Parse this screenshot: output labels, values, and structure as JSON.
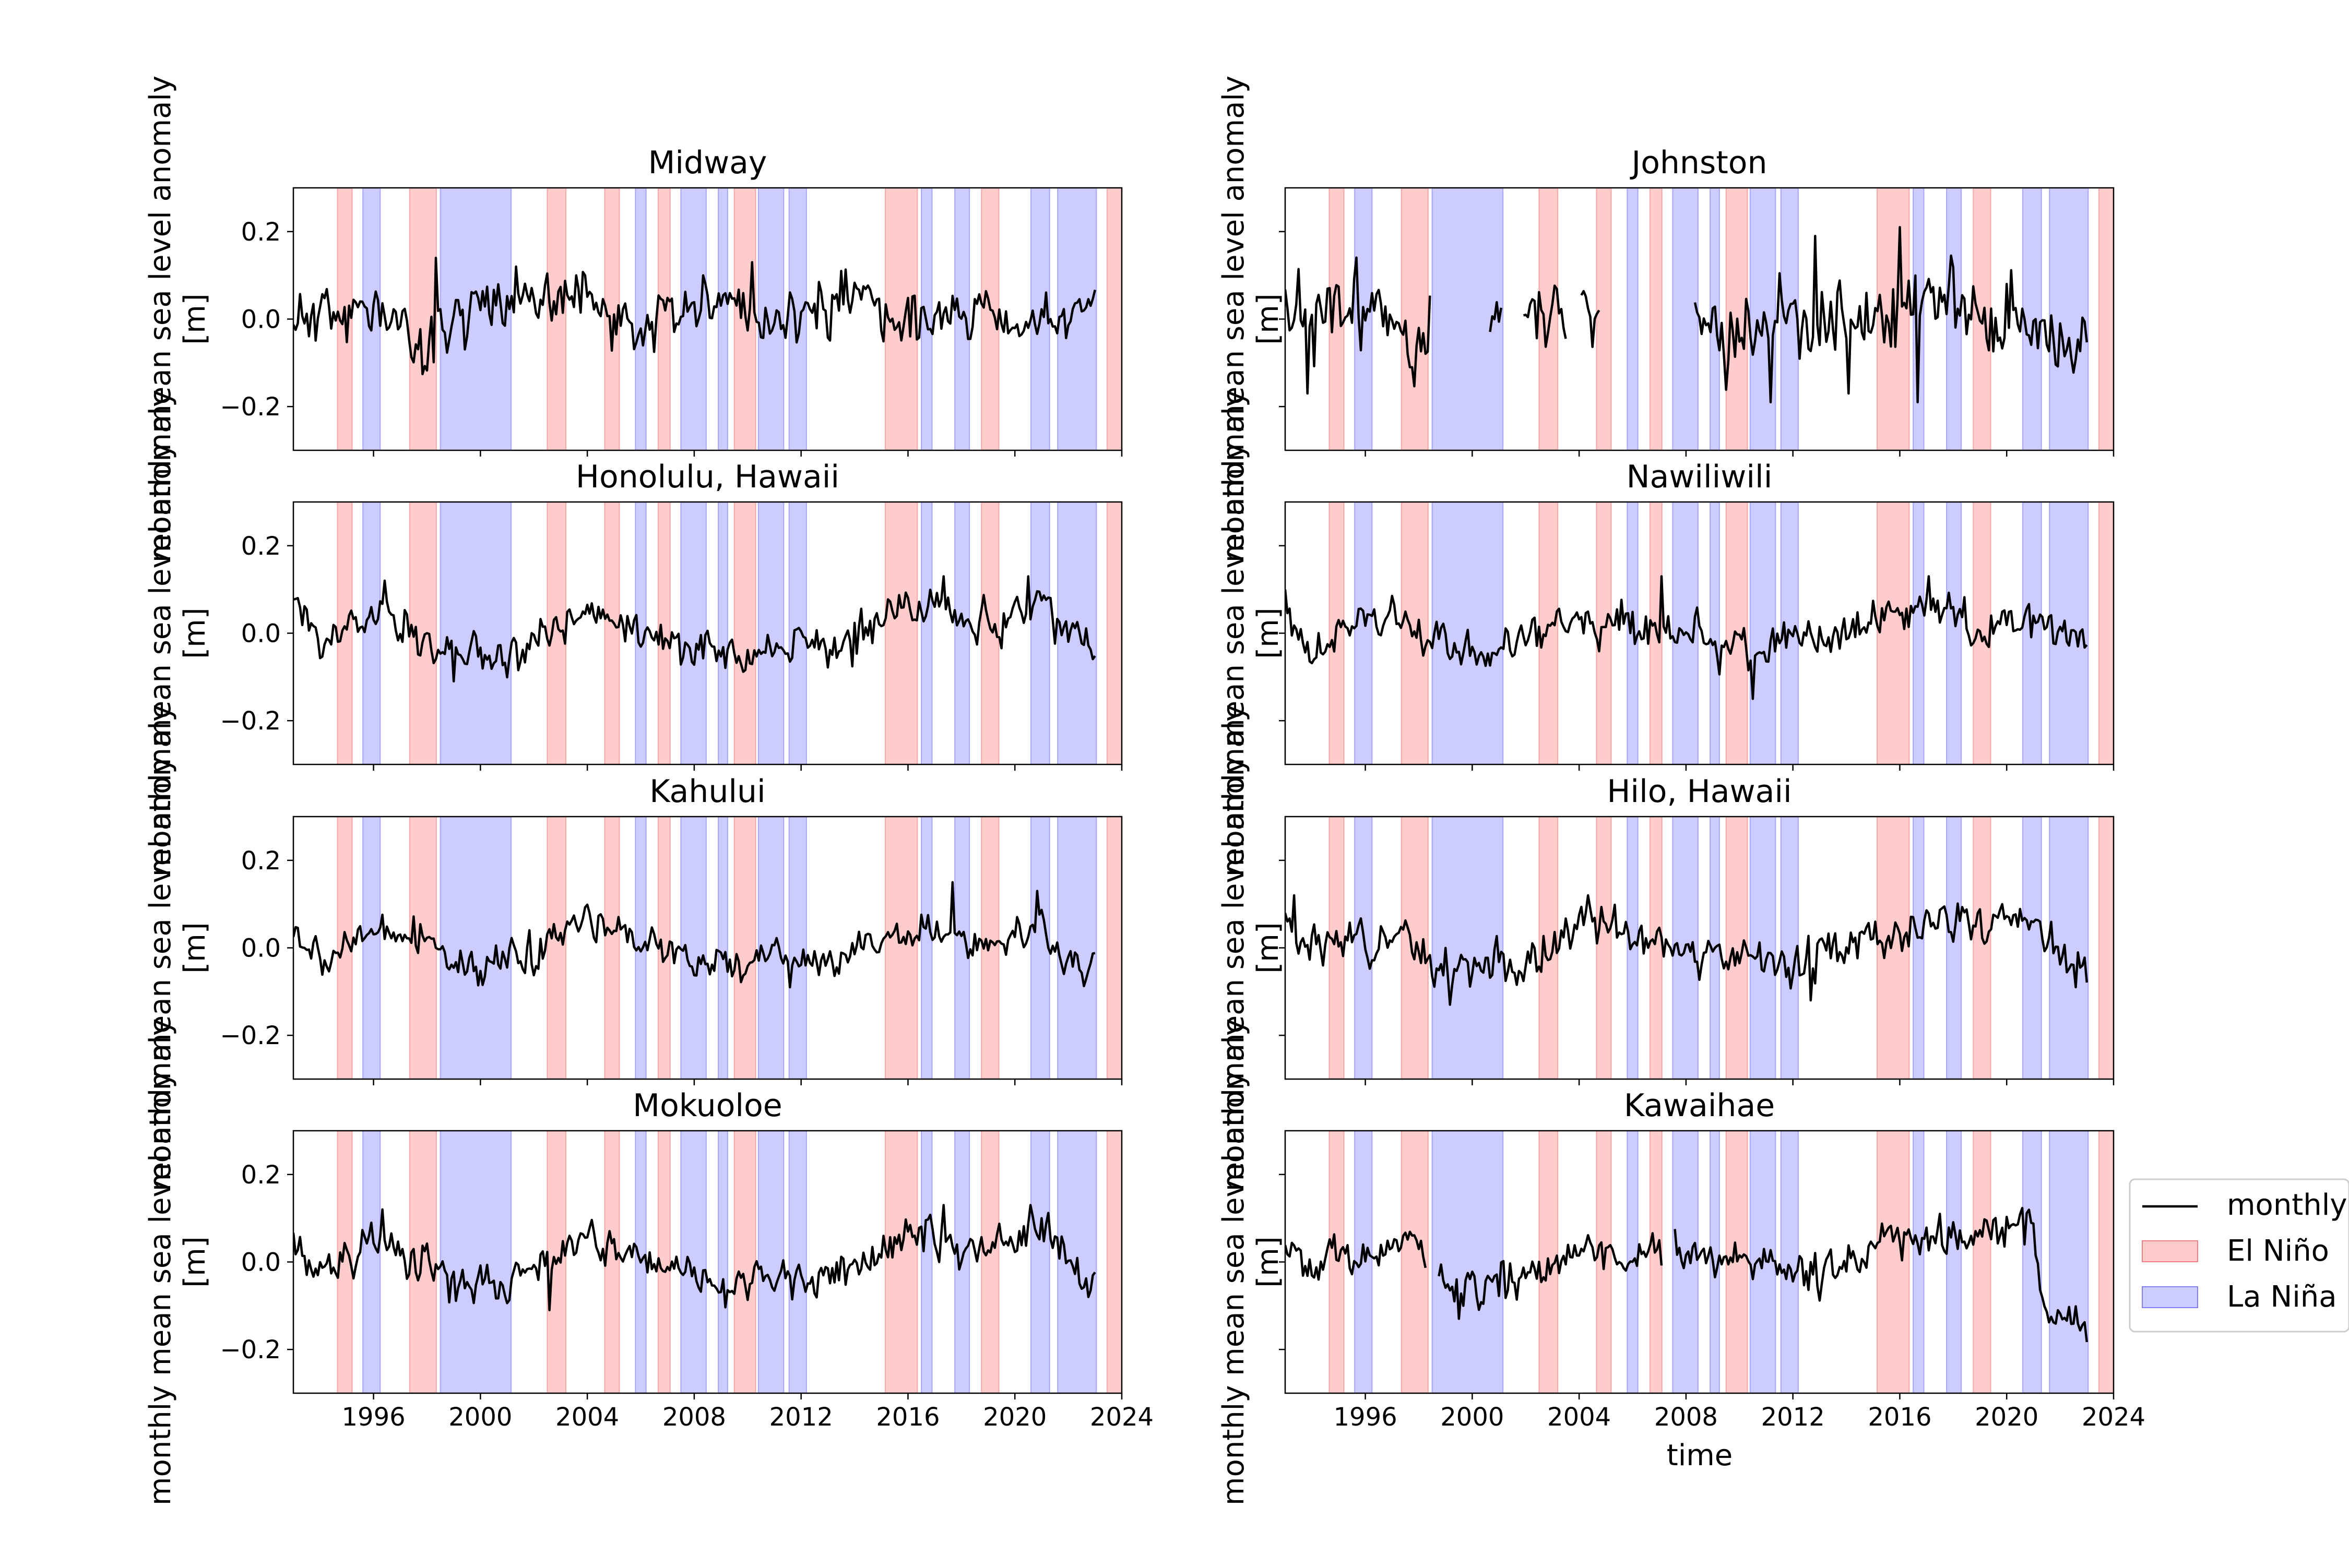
{
  "figure": {
    "legend": {
      "position": "right",
      "entries": [
        {
          "label": "monthly",
          "kind": "line",
          "color": "#000000"
        },
        {
          "label": "El Niño",
          "kind": "patch",
          "fill": "#ffcccc",
          "stroke": "#f28080"
        },
        {
          "label": "La Niña",
          "kind": "patch",
          "fill": "#ccccff",
          "stroke": "#8080f2"
        }
      ]
    }
  },
  "chart_data": {
    "type": "line",
    "layout": "4 rows x 2 columns of subplots, shared x and y axes",
    "xlabel": "time",
    "ylabel": [
      "monthly mean sea level anomaly",
      "[m]"
    ],
    "xlim": [
      1993.0,
      2024.0
    ],
    "ylim": [
      -0.3,
      0.3
    ],
    "x_ticks": [
      1996,
      2000,
      2004,
      2008,
      2012,
      2016,
      2020,
      2024
    ],
    "y_ticks": [
      -0.2,
      0.0,
      0.2
    ],
    "y_tick_labels": [
      "−0.2",
      "0.0",
      "0.2"
    ],
    "grid": false,
    "el_nino_periods": [
      [
        1994.65,
        1995.2
      ],
      [
        1997.35,
        1998.35
      ],
      [
        2002.5,
        2003.2
      ],
      [
        2004.65,
        2005.2
      ],
      [
        2006.65,
        2007.1
      ],
      [
        2009.5,
        2010.3
      ],
      [
        2015.15,
        2016.35
      ],
      [
        2018.75,
        2019.4
      ],
      [
        2023.45,
        2024.0
      ]
    ],
    "la_nina_periods": [
      [
        1995.6,
        1996.25
      ],
      [
        1998.5,
        2001.15
      ],
      [
        2005.8,
        2006.2
      ],
      [
        2007.5,
        2008.45
      ],
      [
        2008.9,
        2009.25
      ],
      [
        2010.4,
        2011.35
      ],
      [
        2011.55,
        2012.2
      ],
      [
        2016.5,
        2016.9
      ],
      [
        2017.75,
        2018.3
      ],
      [
        2020.6,
        2021.3
      ],
      [
        2021.6,
        2023.05
      ]
    ],
    "subplots": [
      {
        "title": "Midway",
        "column": 0,
        "row": 0,
        "series": {
          "name": "monthly",
          "seed": 11,
          "base": [
            [
              1993.0,
              0.0
            ],
            [
              1996.5,
              0.02
            ],
            [
              1998.0,
              -0.08
            ],
            [
              1998.8,
              0.0
            ],
            [
              2001.0,
              0.06
            ],
            [
              2004.0,
              0.03
            ],
            [
              2006.0,
              -0.02
            ],
            [
              2009.0,
              0.04
            ],
            [
              2010.5,
              0.02
            ],
            [
              2012.0,
              0.0
            ],
            [
              2014.0,
              0.05
            ],
            [
              2016.0,
              0.0
            ],
            [
              2018.0,
              0.02
            ],
            [
              2020.0,
              -0.01
            ],
            [
              2022.0,
              0.0
            ],
            [
              2023.0,
              0.02
            ]
          ],
          "noise": 0.05,
          "spikes": [
            [
              1998.3,
              0.14
            ],
            [
              2010.2,
              0.13
            ],
            [
              2013.5,
              0.11
            ],
            [
              2001.3,
              0.12
            ]
          ],
          "start": 1993.0,
          "end": 2023.0,
          "gaps": []
        }
      },
      {
        "title": "Johnston",
        "column": 1,
        "row": 0,
        "series": {
          "name": "monthly",
          "seed": 23,
          "base": [
            [
              1993.0,
              -0.02
            ],
            [
              1996.0,
              0.03
            ],
            [
              1998.5,
              -0.02
            ],
            [
              2003.0,
              0.02
            ],
            [
              2008.0,
              0.0
            ],
            [
              2010.0,
              -0.05
            ],
            [
              2012.0,
              0.0
            ],
            [
              2014.0,
              -0.02
            ],
            [
              2016.0,
              0.03
            ],
            [
              2018.0,
              0.02
            ],
            [
              2020.0,
              0.0
            ],
            [
              2023.0,
              -0.04
            ]
          ],
          "noise": 0.07,
          "spikes": [
            [
              2016.0,
              0.21
            ],
            [
              2016.7,
              -0.19
            ],
            [
              2011.2,
              -0.19
            ],
            [
              2012.8,
              0.19
            ],
            [
              1993.8,
              -0.17
            ],
            [
              2014.1,
              -0.17
            ]
          ],
          "start": 1993.0,
          "end": 2023.0,
          "gaps": [
            [
              1998.45,
              2000.6
            ],
            [
              2001.1,
              2001.9
            ],
            [
              2003.55,
              2004.0
            ],
            [
              2004.75,
              2008.3
            ]
          ]
        }
      },
      {
        "title": "Honolulu, Hawaii",
        "column": 0,
        "row": 1,
        "series": {
          "name": "monthly",
          "seed": 37,
          "base": [
            [
              1993.0,
              0.04
            ],
            [
              1994.0,
              -0.03
            ],
            [
              1996.0,
              0.06
            ],
            [
              1998.0,
              -0.02
            ],
            [
              1999.5,
              -0.05
            ],
            [
              2002.0,
              -0.03
            ],
            [
              2004.0,
              0.05
            ],
            [
              2006.0,
              0.01
            ],
            [
              2009.0,
              -0.05
            ],
            [
              2011.0,
              -0.03
            ],
            [
              2014.0,
              -0.02
            ],
            [
              2015.5,
              0.04
            ],
            [
              2017.0,
              0.06
            ],
            [
              2018.5,
              0.01
            ],
            [
              2020.0,
              0.05
            ],
            [
              2021.0,
              0.07
            ],
            [
              2022.0,
              0.0
            ],
            [
              2023.0,
              -0.04
            ]
          ],
          "noise": 0.035,
          "spikes": [
            [
              2017.3,
              0.13
            ],
            [
              2020.5,
              0.13
            ],
            [
              1996.4,
              0.12
            ],
            [
              1999.0,
              -0.11
            ]
          ],
          "start": 1993.0,
          "end": 2023.0,
          "gaps": []
        }
      },
      {
        "title": "Nawiliwili",
        "column": 1,
        "row": 1,
        "series": {
          "name": "monthly",
          "seed": 41,
          "base": [
            [
              1993.0,
              0.06
            ],
            [
              1994.0,
              -0.06
            ],
            [
              1996.0,
              0.04
            ],
            [
              1997.5,
              0.02
            ],
            [
              1999.0,
              -0.05
            ],
            [
              2002.0,
              -0.02
            ],
            [
              2004.0,
              0.01
            ],
            [
              2006.0,
              0.03
            ],
            [
              2008.0,
              0.0
            ],
            [
              2010.0,
              -0.04
            ],
            [
              2012.0,
              -0.01
            ],
            [
              2014.0,
              0.0
            ],
            [
              2016.0,
              0.04
            ],
            [
              2017.5,
              0.06
            ],
            [
              2019.0,
              0.0
            ],
            [
              2021.0,
              0.03
            ],
            [
              2023.0,
              -0.02
            ]
          ],
          "noise": 0.035,
          "spikes": [
            [
              2010.5,
              -0.15
            ],
            [
              2017.1,
              0.13
            ],
            [
              2007.1,
              0.13
            ],
            [
              1993.0,
              0.1
            ]
          ],
          "start": 1993.0,
          "end": 2023.0,
          "gaps": []
        }
      },
      {
        "title": "Kahului",
        "column": 0,
        "row": 2,
        "series": {
          "name": "monthly",
          "seed": 53,
          "base": [
            [
              1993.0,
              0.05
            ],
            [
              1994.3,
              -0.04
            ],
            [
              1996.0,
              0.05
            ],
            [
              1997.5,
              0.03
            ],
            [
              1999.5,
              -0.05
            ],
            [
              2002.0,
              -0.01
            ],
            [
              2004.0,
              0.06
            ],
            [
              2006.0,
              0.02
            ],
            [
              2009.0,
              -0.05
            ],
            [
              2011.0,
              -0.02
            ],
            [
              2013.0,
              -0.03
            ],
            [
              2015.0,
              0.02
            ],
            [
              2017.0,
              0.04
            ],
            [
              2018.5,
              0.0
            ],
            [
              2020.0,
              0.02
            ],
            [
              2021.0,
              0.07
            ],
            [
              2022.0,
              -0.05
            ],
            [
              2023.0,
              -0.02
            ]
          ],
          "noise": 0.03,
          "spikes": [
            [
              2017.7,
              0.15
            ],
            [
              2020.8,
              0.13
            ],
            [
              2011.6,
              -0.09
            ]
          ],
          "start": 1993.0,
          "end": 2023.0,
          "gaps": []
        }
      },
      {
        "title": "Hilo, Hawaii",
        "column": 1,
        "row": 2,
        "series": {
          "name": "monthly",
          "seed": 67,
          "base": [
            [
              1993.0,
              0.07
            ],
            [
              1994.0,
              0.0
            ],
            [
              1996.0,
              0.03
            ],
            [
              1998.0,
              0.01
            ],
            [
              1999.0,
              -0.05
            ],
            [
              2000.5,
              -0.03
            ],
            [
              2002.0,
              -0.04
            ],
            [
              2004.0,
              0.05
            ],
            [
              2006.0,
              0.02
            ],
            [
              2008.0,
              0.0
            ],
            [
              2010.0,
              -0.02
            ],
            [
              2012.0,
              -0.04
            ],
            [
              2014.0,
              0.0
            ],
            [
              2016.0,
              0.05
            ],
            [
              2017.5,
              0.09
            ],
            [
              2019.0,
              0.05
            ],
            [
              2021.0,
              0.06
            ],
            [
              2022.0,
              -0.03
            ],
            [
              2023.0,
              -0.06
            ]
          ],
          "noise": 0.035,
          "spikes": [
            [
              1993.3,
              0.12
            ],
            [
              2012.7,
              -0.12
            ],
            [
              1999.2,
              -0.13
            ],
            [
              2004.3,
              0.12
            ]
          ],
          "start": 1993.0,
          "end": 2023.0,
          "gaps": []
        }
      },
      {
        "title": "Mokuoloe",
        "column": 0,
        "row": 3,
        "series": {
          "name": "monthly",
          "seed": 79,
          "base": [
            [
              1993.0,
              0.05
            ],
            [
              1994.0,
              -0.03
            ],
            [
              1996.0,
              0.06
            ],
            [
              1998.0,
              -0.02
            ],
            [
              1999.5,
              -0.05
            ],
            [
              2002.0,
              -0.03
            ],
            [
              2004.0,
              0.05
            ],
            [
              2006.0,
              0.01
            ],
            [
              2009.0,
              -0.05
            ],
            [
              2011.0,
              -0.03
            ],
            [
              2014.0,
              -0.02
            ],
            [
              2015.5,
              0.04
            ],
            [
              2017.0,
              0.06
            ],
            [
              2018.5,
              0.01
            ],
            [
              2020.0,
              0.05
            ],
            [
              2021.0,
              0.07
            ],
            [
              2022.0,
              0.0
            ],
            [
              2023.0,
              -0.05
            ]
          ],
          "noise": 0.035,
          "spikes": [
            [
              2017.3,
              0.13
            ],
            [
              2020.6,
              0.13
            ],
            [
              1996.3,
              0.12
            ],
            [
              2002.6,
              -0.11
            ]
          ],
          "start": 1993.0,
          "end": 2023.0,
          "gaps": []
        }
      },
      {
        "title": "Kawaihae",
        "column": 1,
        "row": 3,
        "series": {
          "name": "monthly",
          "seed": 83,
          "base": [
            [
              1993.0,
              0.05
            ],
            [
              1994.0,
              0.0
            ],
            [
              1996.0,
              0.02
            ],
            [
              1998.0,
              0.05
            ],
            [
              1999.0,
              -0.07
            ],
            [
              2001.0,
              -0.05
            ],
            [
              2003.0,
              -0.02
            ],
            [
              2004.5,
              0.04
            ],
            [
              2006.0,
              0.0
            ],
            [
              2007.5,
              0.03
            ],
            [
              2009.0,
              0.01
            ],
            [
              2011.0,
              0.0
            ],
            [
              2013.0,
              -0.03
            ],
            [
              2015.0,
              0.03
            ],
            [
              2017.0,
              0.08
            ],
            [
              2018.5,
              0.05
            ],
            [
              2020.0,
              0.08
            ],
            [
              2021.0,
              0.06
            ],
            [
              2021.3,
              -0.1
            ],
            [
              2022.5,
              -0.13
            ],
            [
              2023.0,
              -0.17
            ]
          ],
          "noise": 0.035,
          "spikes": [
            [
              1999.5,
              -0.13
            ],
            [
              2007.3,
              0.13
            ],
            [
              2017.5,
              0.11
            ]
          ],
          "start": 1993.0,
          "end": 2023.0,
          "gaps": [
            [
              1998.3,
              1998.7
            ],
            [
              2007.1,
              2007.5
            ]
          ]
        }
      }
    ]
  }
}
